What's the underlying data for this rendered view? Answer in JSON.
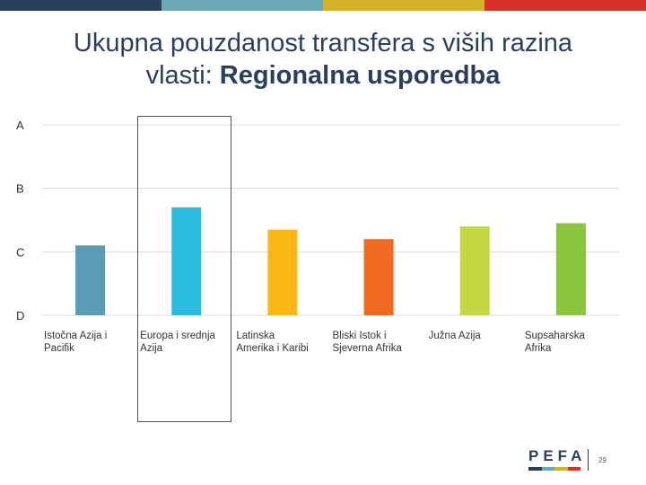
{
  "top_bar_colors": [
    "#2b3f5c",
    "#6aa8b8",
    "#d4b32a",
    "#d9302c"
  ],
  "title": {
    "line1": "Ukupna pouzdanost transfera s viših razina",
    "line2_plain": "vlasti: ",
    "line2_bold": "Regionalna usporedba"
  },
  "chart_data": {
    "type": "bar",
    "title": "Ukupna pouzdanost transfera s viših razina vlasti: Regionalna usporedba",
    "y_ticks": [
      "A",
      "B",
      "C",
      "D"
    ],
    "y_scale": {
      "A": 4,
      "B": 3,
      "C": 2,
      "D": 1
    },
    "ylim": [
      1,
      4
    ],
    "grid": true,
    "categories": [
      "Istočna Azija i Pacifik",
      "Europa i srednja Azija",
      "Latinska Amerika i Karibi",
      "Bliski Istok i Sjeverna Afrika",
      "Južna Azija",
      "Supsaharska Afrika"
    ],
    "values": [
      2.1,
      2.7,
      2.35,
      2.2,
      2.4,
      2.45
    ],
    "colors": [
      "#5a9bb5",
      "#2bbde0",
      "#fbb716",
      "#f26a22",
      "#c4d842",
      "#8bc53f"
    ],
    "highlighted_category": "Europa i srednja Azija"
  },
  "footer": {
    "logo_text": "PEFA",
    "logo_bar_colors": [
      "#2b3f5c",
      "#6aa8b8",
      "#d4b32a",
      "#d9302c"
    ],
    "page_number": "29"
  }
}
